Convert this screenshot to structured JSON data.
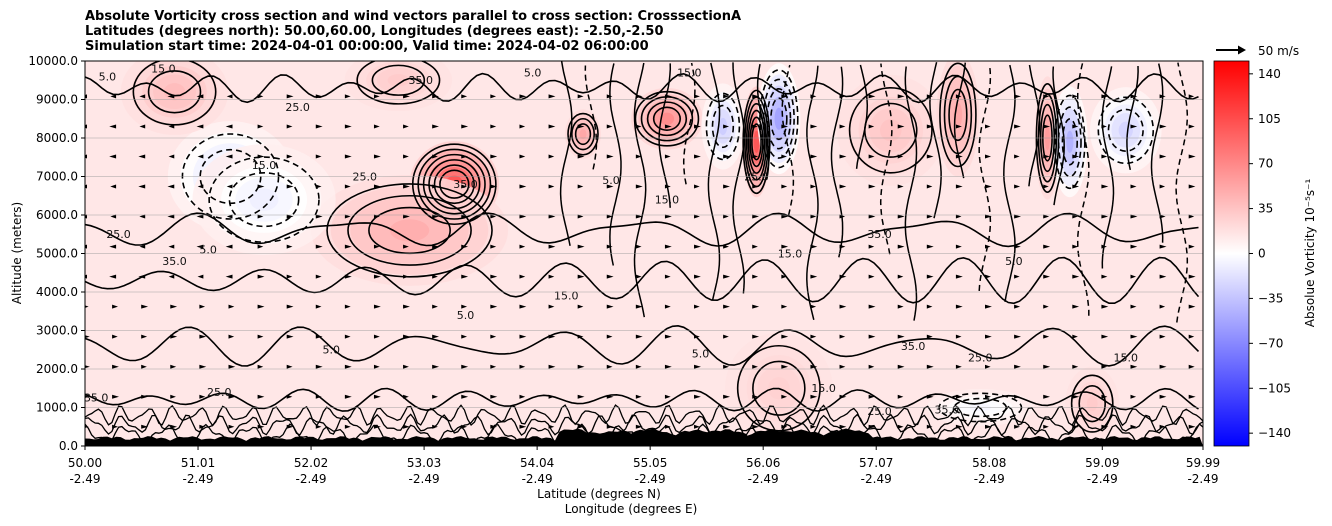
{
  "chart_data": {
    "type": "contour-cross-section",
    "title_lines": [
      "Absolute Vorticity cross section and wind vectors parallel to cross section: CrosssectionA",
      "Latitudes (degrees north): 50.00,60.00, Longitudes (degrees east): -2.50,-2.50",
      "Simulation start time: 2024-04-01 00:00:00, Valid time: 2024-04-02 06:00:00"
    ],
    "ylabel": "Altitude (meters)",
    "xlabel_lat": "Latitude (degrees N)",
    "xlabel_lon": "Longitude (degrees E)",
    "ylim": [
      0,
      10000
    ],
    "xlim": [
      50.0,
      59.99
    ],
    "y_ticks": [
      0,
      1000,
      2000,
      3000,
      4000,
      5000,
      6000,
      7000,
      8000,
      9000,
      10000
    ],
    "y_tick_labels": [
      "0.0",
      "1000.0",
      "2000.0",
      "3000.0",
      "4000.0",
      "5000.0",
      "6000.0",
      "7000.0",
      "8000.0",
      "9000.0",
      "10000.0"
    ],
    "x_ticks": [
      50.0,
      51.01,
      52.02,
      53.03,
      54.04,
      55.05,
      56.06,
      57.07,
      58.08,
      59.09,
      59.99
    ],
    "x_tick_lat_labels": [
      "50.00",
      "51.01",
      "52.02",
      "53.03",
      "54.04",
      "55.05",
      "56.06",
      "57.07",
      "58.08",
      "59.09",
      "59.99"
    ],
    "x_tick_lon_labels": [
      "-2.49",
      "-2.49",
      "-2.49",
      "-2.49",
      "-2.49",
      "-2.49",
      "-2.49",
      "-2.49",
      "-2.49",
      "-2.49",
      "-2.49"
    ],
    "grid": true,
    "colorbar": {
      "label": "Absolue Vorticity 10⁻⁵s⁻¹",
      "range": [
        -150,
        150
      ],
      "ticks": [
        140,
        105,
        70,
        35,
        0,
        -35,
        -70,
        -105,
        -140
      ],
      "tick_labels": [
        "140",
        "105",
        "70",
        "35",
        "0",
        "−35",
        "−70",
        "−105",
        "−140"
      ],
      "colormap": "bwr"
    },
    "quiver_key": {
      "label": "50 m/s",
      "magnitude": 50
    },
    "contour_label_values": [
      "5.0",
      "15.0",
      "25.0",
      "35.0"
    ],
    "vorticity_features": [
      {
        "lat": 53.3,
        "alt": 6800,
        "value": 120,
        "sx": 0.25,
        "sy": 700
      },
      {
        "lat": 52.9,
        "alt": 5600,
        "value": 55,
        "sx": 0.55,
        "sy": 900
      },
      {
        "lat": 51.3,
        "alt": 7000,
        "value": -30,
        "sx": 0.35,
        "sy": 900
      },
      {
        "lat": 51.6,
        "alt": 6400,
        "value": -15,
        "sx": 0.4,
        "sy": 900
      },
      {
        "lat": 54.45,
        "alt": 8100,
        "value": 60,
        "sx": 0.1,
        "sy": 400
      },
      {
        "lat": 55.2,
        "alt": 8500,
        "value": 80,
        "sx": 0.2,
        "sy": 500
      },
      {
        "lat": 55.7,
        "alt": 8300,
        "value": -40,
        "sx": 0.12,
        "sy": 700
      },
      {
        "lat": 56.0,
        "alt": 7900,
        "value": 120,
        "sx": 0.08,
        "sy": 900
      },
      {
        "lat": 56.2,
        "alt": 8500,
        "value": -70,
        "sx": 0.12,
        "sy": 900
      },
      {
        "lat": 57.2,
        "alt": 8200,
        "value": 40,
        "sx": 0.3,
        "sy": 900
      },
      {
        "lat": 57.8,
        "alt": 8600,
        "value": 60,
        "sx": 0.12,
        "sy": 1000
      },
      {
        "lat": 58.6,
        "alt": 8000,
        "value": 70,
        "sx": 0.07,
        "sy": 1000
      },
      {
        "lat": 58.8,
        "alt": 7900,
        "value": -60,
        "sx": 0.1,
        "sy": 900
      },
      {
        "lat": 59.3,
        "alt": 8200,
        "value": -35,
        "sx": 0.2,
        "sy": 700
      },
      {
        "lat": 58.0,
        "alt": 1000,
        "value": -10,
        "sx": 0.3,
        "sy": 300
      },
      {
        "lat": 59.0,
        "alt": 1100,
        "value": 35,
        "sx": 0.15,
        "sy": 600
      },
      {
        "lat": 56.2,
        "alt": 1500,
        "value": 30,
        "sx": 0.3,
        "sy": 900
      },
      {
        "lat": 50.8,
        "alt": 9200,
        "value": 45,
        "sx": 0.3,
        "sy": 700
      },
      {
        "lat": 52.8,
        "alt": 9500,
        "value": 35,
        "sx": 0.3,
        "sy": 500
      }
    ],
    "background_vorticity": 14
  }
}
